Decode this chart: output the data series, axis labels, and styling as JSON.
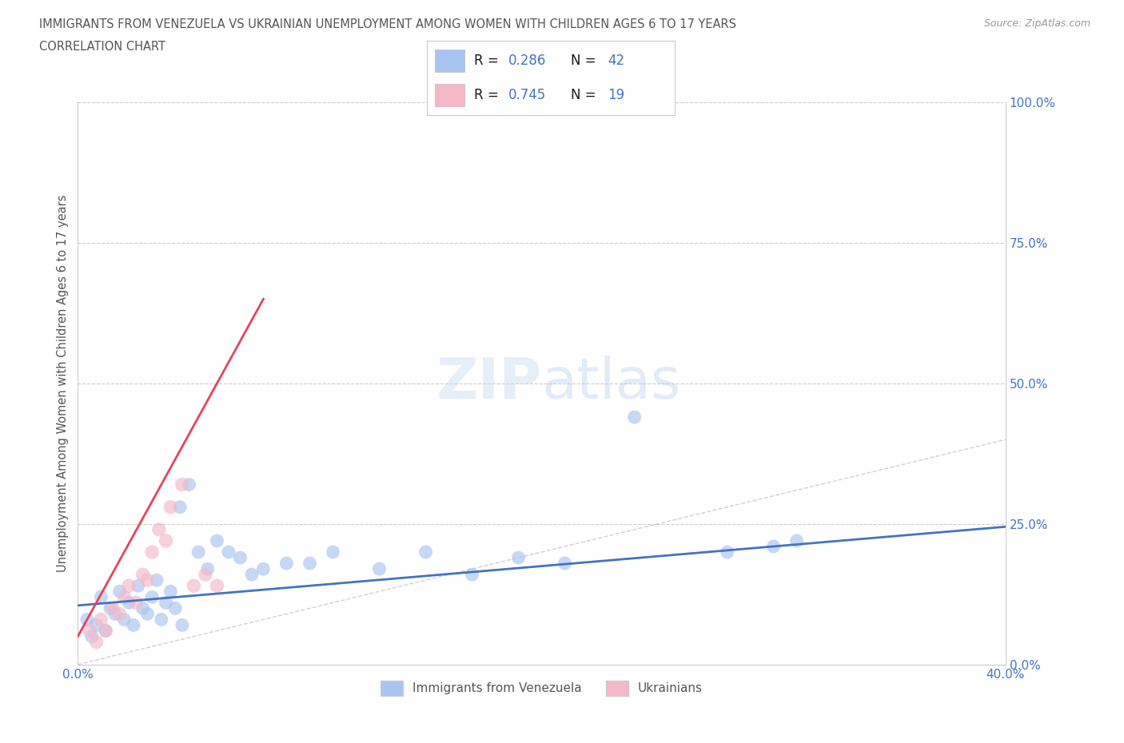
{
  "title_line1": "IMMIGRANTS FROM VENEZUELA VS UKRAINIAN UNEMPLOYMENT AMONG WOMEN WITH CHILDREN AGES 6 TO 17 YEARS",
  "title_line2": "CORRELATION CHART",
  "source": "Source: ZipAtlas.com",
  "ylabel": "Unemployment Among Women with Children Ages 6 to 17 years",
  "xlim": [
    0.0,
    0.4
  ],
  "ylim": [
    0.0,
    1.0
  ],
  "xticks": [
    0.0,
    0.1,
    0.2,
    0.3,
    0.4
  ],
  "xticklabels": [
    "0.0%",
    "",
    "",
    "",
    "40.0%"
  ],
  "yticks": [
    0.0,
    0.25,
    0.5,
    0.75,
    1.0
  ],
  "yticklabels_right": [
    "0.0%",
    "25.0%",
    "50.0%",
    "75.0%",
    "100.0%"
  ],
  "blue_color": "#a8c4f0",
  "pink_color": "#f5b8c8",
  "blue_line_color": "#4472c4",
  "pink_line_color": "#e8435a",
  "diag_color": "#d0d0d0",
  "R_blue": 0.286,
  "N_blue": 42,
  "R_pink": 0.745,
  "N_pink": 19,
  "legend_label_blue": "Immigrants from Venezuela",
  "legend_label_pink": "Ukrainians",
  "title_color": "#555555",
  "axis_label_color": "#555555",
  "tick_color": "#4472c4",
  "venezuela_x": [
    0.004,
    0.006,
    0.008,
    0.01,
    0.012,
    0.014,
    0.016,
    0.018,
    0.02,
    0.022,
    0.024,
    0.026,
    0.028,
    0.03,
    0.032,
    0.034,
    0.036,
    0.038,
    0.04,
    0.042,
    0.044,
    0.048,
    0.052,
    0.056,
    0.06,
    0.065,
    0.07,
    0.075,
    0.08,
    0.09,
    0.1,
    0.11,
    0.13,
    0.15,
    0.17,
    0.19,
    0.21,
    0.24,
    0.28,
    0.3,
    0.31,
    0.045
  ],
  "venezuela_y": [
    0.08,
    0.05,
    0.07,
    0.12,
    0.06,
    0.1,
    0.09,
    0.13,
    0.08,
    0.11,
    0.07,
    0.14,
    0.1,
    0.09,
    0.12,
    0.15,
    0.08,
    0.11,
    0.13,
    0.1,
    0.28,
    0.32,
    0.2,
    0.17,
    0.22,
    0.2,
    0.19,
    0.16,
    0.17,
    0.18,
    0.18,
    0.2,
    0.17,
    0.2,
    0.16,
    0.19,
    0.18,
    0.44,
    0.2,
    0.21,
    0.22,
    0.07
  ],
  "ukraine_x": [
    0.005,
    0.008,
    0.01,
    0.012,
    0.015,
    0.018,
    0.02,
    0.022,
    0.025,
    0.028,
    0.03,
    0.032,
    0.035,
    0.038,
    0.04,
    0.045,
    0.05,
    0.055,
    0.06
  ],
  "ukraine_y": [
    0.06,
    0.04,
    0.08,
    0.06,
    0.1,
    0.09,
    0.12,
    0.14,
    0.11,
    0.16,
    0.15,
    0.2,
    0.24,
    0.22,
    0.28,
    0.32,
    0.14,
    0.16,
    0.14
  ],
  "pink_line_x0": 0.0,
  "pink_line_y0": 0.05,
  "pink_line_x1": 0.08,
  "pink_line_y1": 0.65,
  "blue_line_x0": 0.0,
  "blue_line_y0": 0.105,
  "blue_line_x1": 0.4,
  "blue_line_y1": 0.245
}
